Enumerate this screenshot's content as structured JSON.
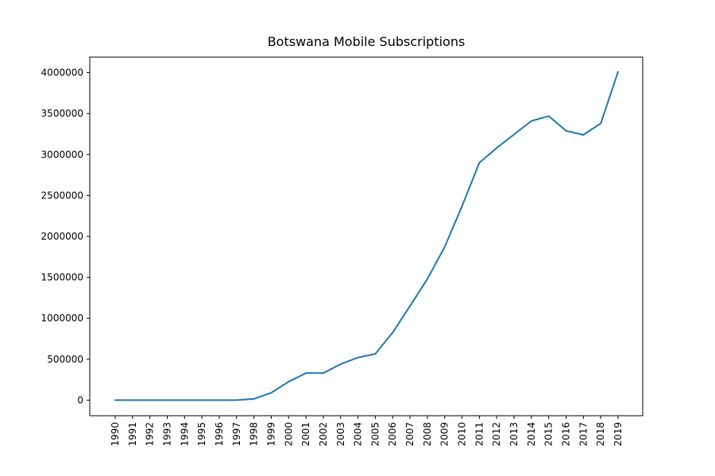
{
  "chart_data": {
    "type": "line",
    "title": "Botswana Mobile Subscriptions",
    "xlabel": "",
    "ylabel": "",
    "grid": false,
    "line_color": "#1f77b4",
    "x": [
      "1990",
      "1991",
      "1992",
      "1993",
      "1994",
      "1995",
      "1996",
      "1997",
      "1998",
      "1999",
      "2000",
      "2001",
      "2002",
      "2003",
      "2004",
      "2005",
      "2006",
      "2007",
      "2008",
      "2009",
      "2010",
      "2011",
      "2012",
      "2013",
      "2014",
      "2015",
      "2016",
      "2017",
      "2018",
      "2019"
    ],
    "values": [
      0,
      0,
      0,
      0,
      0,
      0,
      0,
      0,
      15000,
      90000,
      225000,
      330000,
      330000,
      440000,
      520000,
      565000,
      825000,
      1150000,
      1480000,
      1870000,
      2370000,
      2900000,
      3080000,
      3245000,
      3410000,
      3470000,
      3290000,
      3240000,
      3380000,
      4010000
    ],
    "ylim": [
      -190000,
      4190000
    ],
    "yticks": [
      0,
      500000,
      1000000,
      1500000,
      2000000,
      2500000,
      3000000,
      3500000,
      4000000
    ],
    "ytick_labels": [
      "0",
      "500000",
      "1000000",
      "1500000",
      "2000000",
      "2500000",
      "3000000",
      "3500000",
      "4000000"
    ]
  }
}
